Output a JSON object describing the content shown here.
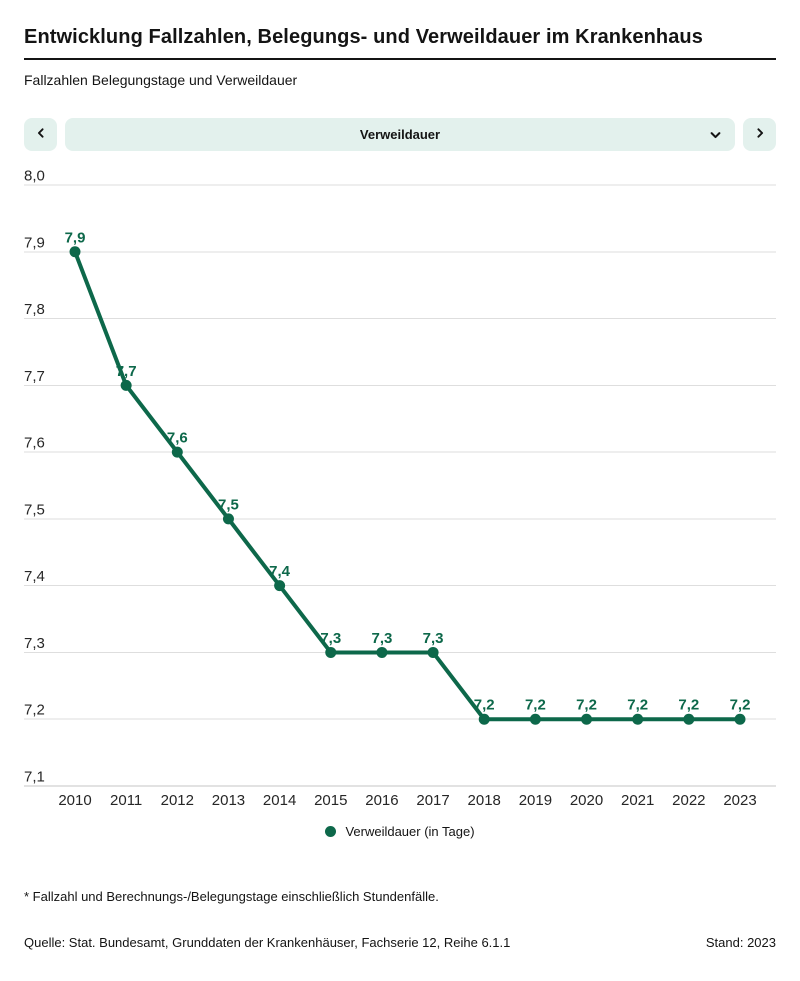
{
  "header": {
    "title": "Entwicklung Fallzahlen, Belegungs- und Verweildauer im Krankenhaus",
    "subtitle": "Fallzahlen Belegungstage und Verweildauer"
  },
  "controls": {
    "prev_icon": "chevron-left",
    "next_icon": "chevron-right",
    "select": {
      "value": "Verweildauer",
      "icon": "chevron-down"
    },
    "background_color": "#e3f1ed"
  },
  "chart_data": {
    "type": "line",
    "title": "Fallzahlen Belegungstage und Verweildauer",
    "x": [
      2010,
      2011,
      2012,
      2013,
      2014,
      2015,
      2016,
      2017,
      2018,
      2019,
      2020,
      2021,
      2022,
      2023
    ],
    "series": [
      {
        "name": "Verweildauer (in Tage)",
        "values": [
          7.9,
          7.7,
          7.6,
          7.5,
          7.4,
          7.3,
          7.3,
          7.3,
          7.2,
          7.2,
          7.2,
          7.2,
          7.2,
          7.2
        ],
        "labels": [
          "7,9",
          "7,7",
          "7,6",
          "7,5",
          "7,4",
          "7,3",
          "7,3",
          "7,3",
          "7,2",
          "7,2",
          "7,2",
          "7,2",
          "7,2",
          "7,2"
        ]
      }
    ],
    "ylim": [
      7.1,
      8.0
    ],
    "yticks": {
      "values": [
        8.0,
        7.9,
        7.8,
        7.7,
        7.6,
        7.5,
        7.4,
        7.3,
        7.2,
        7.1
      ],
      "labels": [
        "8,0",
        "7,9",
        "7,8",
        "7,7",
        "7,6",
        "7,5",
        "7,4",
        "7,3",
        "7,2",
        "7,1"
      ]
    },
    "grid": true,
    "legend_position": "bottom",
    "colors": {
      "line": "#0d684a",
      "point": "#0d684a",
      "value_label": "#0d684a",
      "grid": "#dedede",
      "axis": "#c6c6c6",
      "tick_text": "#262626"
    }
  },
  "footer": {
    "footnote": "* Fallzahl und Berechnungs-/Belegungstage einschließlich Stundenfälle.",
    "source": "Quelle: Stat. Bundesamt, Grunddaten der Krankenhäuser, Fachserie 12, Reihe 6.1.1",
    "stand": "Stand: 2023"
  }
}
